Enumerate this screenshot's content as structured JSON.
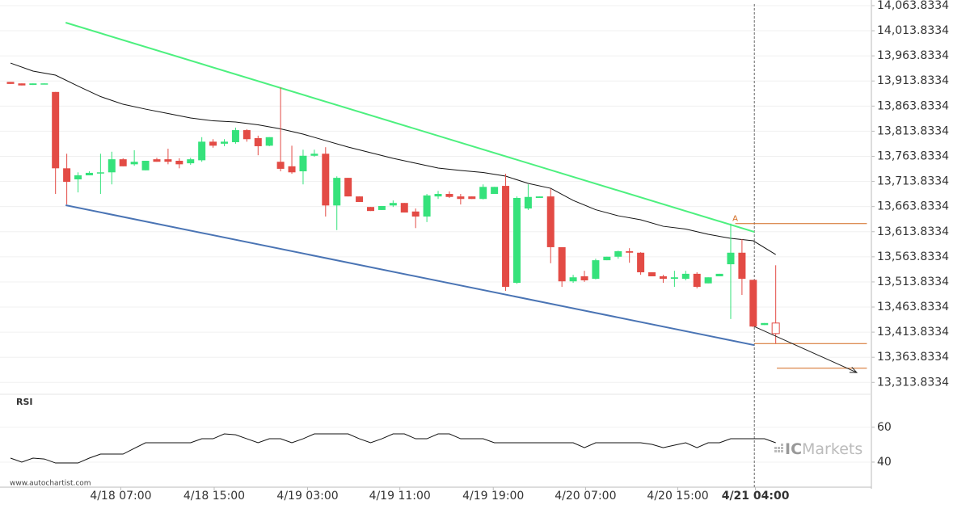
{
  "chart_data": {
    "type": "candlestick",
    "up_color": "#35e27b",
    "down_color": "#e34b45",
    "open": [
      13912,
      13909,
      13906,
      13908,
      13892,
      13740,
      13718,
      13726,
      13731,
      13732,
      13758,
      13748,
      13736,
      13758,
      13758,
      13755,
      13750,
      13756,
      13793,
      13789,
      13792,
      13816,
      13800,
      13785,
      13753,
      13744,
      13734,
      13765,
      13769,
      13666,
      13721,
      13684,
      13663,
      13657,
      13666,
      13671,
      13654,
      13644,
      13684,
      13689,
      13684,
      13684,
      13679,
      13689,
      13705,
      13512,
      13660,
      13681,
      13684,
      13583,
      13515,
      13525,
      13520,
      13557,
      13564,
      13575,
      13572,
      13533,
      13525,
      13520,
      13520,
      13530,
      13511,
      13525,
      13549,
      13572,
      13518,
      13428,
      13432
    ],
    "high": [
      13912,
      13909,
      13909,
      13909,
      13892,
      13769,
      13732,
      13734,
      13769,
      13773,
      13760,
      13776,
      13755,
      13761,
      13779,
      13760,
      13761,
      13802,
      13798,
      13798,
      13821,
      13818,
      13805,
      13802,
      13901,
      13785,
      13777,
      13777,
      13782,
      13724,
      13721,
      13684,
      13663,
      13665,
      13676,
      13671,
      13660,
      13689,
      13695,
      13694,
      13689,
      13684,
      13708,
      13703,
      13729,
      13684,
      13708,
      13684,
      13699,
      13583,
      13528,
      13536,
      13560,
      13564,
      13576,
      13581,
      13573,
      13533,
      13528,
      13536,
      13536,
      13533,
      13523,
      13530,
      13630,
      13599,
      13518,
      13432,
      13547
    ],
    "low": [
      13908,
      13905,
      13906,
      13908,
      13689,
      13668,
      13692,
      13726,
      13689,
      13708,
      13744,
      13745,
      13736,
      13753,
      13748,
      13740,
      13747,
      13753,
      13781,
      13784,
      13789,
      13793,
      13766,
      13784,
      13734,
      13729,
      13708,
      13763,
      13644,
      13617,
      13684,
      13673,
      13655,
      13657,
      13663,
      13652,
      13621,
      13633,
      13679,
      13681,
      13668,
      13679,
      13678,
      13689,
      13496,
      13510,
      13657,
      13681,
      13551,
      13504,
      13512,
      13514,
      13519,
      13557,
      13560,
      13552,
      13528,
      13525,
      13512,
      13504,
      13517,
      13501,
      13511,
      13525,
      13440,
      13488,
      13424,
      13428,
      13391
    ],
    "close": [
      13908,
      13905,
      13909,
      13909,
      13740,
      13713,
      13726,
      13731,
      13732,
      13758,
      13744,
      13753,
      13755,
      13753,
      13753,
      13748,
      13758,
      13793,
      13785,
      13793,
      13816,
      13798,
      13784,
      13802,
      13739,
      13732,
      13765,
      13769,
      13666,
      13721,
      13684,
      13673,
      13655,
      13665,
      13671,
      13652,
      13644,
      13686,
      13689,
      13683,
      13679,
      13679,
      13703,
      13703,
      13504,
      13681,
      13683,
      13684,
      13583,
      13515,
      13523,
      13517,
      13557,
      13564,
      13575,
      13572,
      13533,
      13525,
      13520,
      13523,
      13530,
      13504,
      13523,
      13530,
      13572,
      13520,
      13425,
      13432,
      13411
    ],
    "moving_average": {
      "color": "#111111",
      "x": [
        0,
        2,
        4,
        6,
        8,
        10,
        12,
        14,
        16,
        18,
        20,
        22,
        24,
        26,
        28,
        30,
        32,
        34,
        36,
        38,
        40,
        42,
        44,
        46,
        48,
        50,
        52,
        54,
        56,
        58,
        60,
        62,
        64,
        66,
        68
      ],
      "values": [
        13949.5,
        13933.5,
        13925.4,
        13903.7,
        13882.8,
        13867.5,
        13857.8,
        13849,
        13840.2,
        13834.5,
        13832.1,
        13826.5,
        13818.5,
        13808,
        13795.1,
        13782.3,
        13771,
        13759.8,
        13750.1,
        13740.5,
        13735.6,
        13731.6,
        13724.4,
        13709.9,
        13700.2,
        13676.1,
        13657.6,
        13645.5,
        13637.5,
        13624.6,
        13619,
        13608.6,
        13600.5,
        13595.7,
        13568.3
      ]
    },
    "trend_lines": [
      {
        "color": "#4df07f",
        "x": [
          4.9,
          66.1
        ],
        "values": [
          14030,
          13613.4
        ]
      },
      {
        "color": "#4a74b4",
        "x": [
          4.9,
          66.1
        ],
        "values": [
          13666.5,
          13388
        ]
      }
    ],
    "projection": {
      "color": "#222222",
      "x": [
        66.1,
        75.2
      ],
      "values": [
        13425,
        13333.5
      ]
    },
    "levels": [
      {
        "color": "#d2691e",
        "x": [
          64.4,
          76.1
        ],
        "value": 13630
      },
      {
        "color": "#d2691e",
        "x": [
          66.1,
          76.1
        ],
        "value": 13391
      },
      {
        "color": "#d2691e",
        "x": [
          68.1,
          76.1
        ],
        "value": 13342
      }
    ],
    "annotation": {
      "text": "A",
      "x": 64.4,
      "y": 13640
    },
    "current_time_x": 66.1,
    "xlim": [
      -0.934,
      76.5
    ],
    "ylim": [
      13295,
      14067
    ],
    "xticks": [
      {
        "value": 9.8,
        "label": "4/18 07:00"
      },
      {
        "value": 18.1,
        "label": "4/18 15:00"
      },
      {
        "value": 26.4,
        "label": "4/19 03:00"
      },
      {
        "value": 34.6,
        "label": "4/19 11:00"
      },
      {
        "value": 42.9,
        "label": "4/19 19:00"
      },
      {
        "value": 51.1,
        "label": "4/20 07:00"
      },
      {
        "value": 59.3,
        "label": "4/20 15:00"
      },
      {
        "value": 66.2,
        "label": "4/21 04:00"
      }
    ],
    "yticks": [
      {
        "value": 14063.8334,
        "label": "14,063.8334"
      },
      {
        "value": 14013.8334,
        "label": "14,013.8334"
      },
      {
        "value": 13963.8334,
        "label": "13,963.8334"
      },
      {
        "value": 13913.8334,
        "label": "13,913.8334"
      },
      {
        "value": 13863.8334,
        "label": "13,863.8334"
      },
      {
        "value": 13813.8334,
        "label": "13,813.8334"
      },
      {
        "value": 13763.8334,
        "label": "13,763.8334"
      },
      {
        "value": 13713.8334,
        "label": "13,713.8334"
      },
      {
        "value": 13663.8334,
        "label": "13,663.8334"
      },
      {
        "value": 13613.8334,
        "label": "13,613.8334"
      },
      {
        "value": 13563.8334,
        "label": "13,563.8334"
      },
      {
        "value": 13513.8334,
        "label": "13,513.8334"
      },
      {
        "value": 13463.8334,
        "label": "13,463.8334"
      },
      {
        "value": 13413.8334,
        "label": "13,413.8334"
      },
      {
        "value": 13363.8334,
        "label": "13,363.8334"
      },
      {
        "value": 13313.8334,
        "label": "13,313.8334"
      }
    ],
    "grid": true,
    "indicator": {
      "name": "RSI",
      "color": "#111111",
      "values": [
        42.3,
        40,
        42.3,
        41.8,
        39.5,
        39.5,
        39.5,
        42.3,
        44.6,
        44.6,
        44.6,
        47.9,
        51.1,
        51.1,
        51.1,
        51.1,
        51.1,
        53.4,
        53.4,
        56.2,
        55.7,
        53.4,
        51.1,
        53.4,
        53.4,
        51.1,
        53.4,
        56.2,
        56.2,
        56.2,
        56.2,
        53.4,
        51.1,
        53.4,
        56.2,
        56.2,
        53.4,
        53.4,
        56.2,
        56.2,
        53.4,
        53.4,
        53.4,
        51.1,
        51.1,
        51.1,
        51.1,
        51.1,
        51.1,
        51.1,
        51.1,
        48.3,
        51.1,
        51.1,
        51.1,
        51.1,
        51.1,
        50.2,
        48.3,
        49.7,
        51.1,
        48.3,
        51.1,
        51.1,
        53.4,
        53.4,
        53.4,
        53.4,
        51.1
      ],
      "ylim": [
        27,
        78
      ],
      "yticks": [
        40,
        60
      ]
    },
    "watermark": "www.autochartist.com",
    "logo": {
      "bold": "IC",
      "light": "Markets"
    }
  }
}
